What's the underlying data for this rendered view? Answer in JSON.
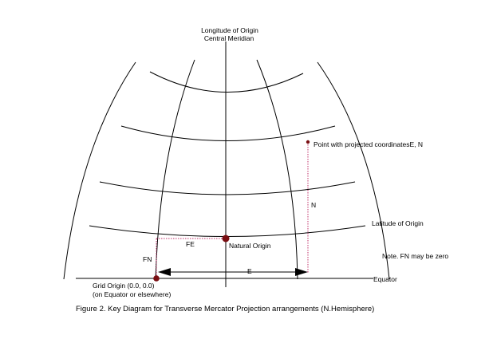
{
  "labels": {
    "longitude_line1": "Longitude of Origin",
    "longitude_line2": "Central Meridian",
    "point": "Point with projected coordinatesE, N",
    "n": "N",
    "latitude": "Latitude of  Origin",
    "fe": "FE",
    "natural_origin": "Natural Origin",
    "fn": "FN",
    "note": "Note. FN may be zero",
    "e": "E",
    "equator": "Equator",
    "grid_origin_line1": "Grid Origin (0.0, 0.0)",
    "grid_origin_line2": "(on Equator or elsewhere)"
  },
  "caption": "Figure 2.  Key Diagram for Transverse Mercator Projection  arrangements (N.Hemisphere)",
  "colors": {
    "lines": "#000000",
    "dotted_guides": "#c0306a",
    "points": "#7a0e12"
  }
}
